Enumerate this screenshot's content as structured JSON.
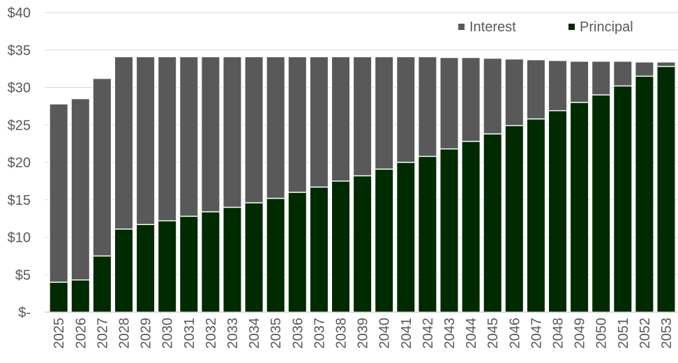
{
  "chart_data": {
    "type": "bar",
    "stacked": true,
    "title": "",
    "xlabel": "",
    "ylabel": "",
    "ylim": [
      0,
      40
    ],
    "y_ticks": [
      0,
      5,
      10,
      15,
      20,
      25,
      30,
      35,
      40
    ],
    "y_tick_labels": [
      "$-",
      "$5",
      "$10",
      "$15",
      "$20",
      "$25",
      "$30",
      "$35",
      "$40"
    ],
    "grid": true,
    "legend_position": "top-right",
    "categories": [
      "2025",
      "2026",
      "2027",
      "2028",
      "2029",
      "2030",
      "2031",
      "2032",
      "2033",
      "2034",
      "2035",
      "2036",
      "2037",
      "2038",
      "2039",
      "2040",
      "2041",
      "2042",
      "2043",
      "2044",
      "2045",
      "2046",
      "2047",
      "2048",
      "2049",
      "2050",
      "2051",
      "2052",
      "2053"
    ],
    "series": [
      {
        "name": "Principal",
        "color": "#002a00",
        "values": [
          4.0,
          4.3,
          7.5,
          11.1,
          11.7,
          12.2,
          12.8,
          13.4,
          14.0,
          14.6,
          15.2,
          16.0,
          16.7,
          17.5,
          18.2,
          19.1,
          20.0,
          20.8,
          21.8,
          22.8,
          23.8,
          24.9,
          25.8,
          26.9,
          28.0,
          29.0,
          30.2,
          31.5,
          32.8
        ]
      },
      {
        "name": "Interest",
        "color": "#595959",
        "values": [
          23.8,
          24.2,
          23.7,
          23.0,
          22.4,
          21.9,
          21.3,
          20.7,
          20.1,
          19.5,
          18.9,
          18.1,
          17.4,
          16.6,
          15.9,
          15.0,
          14.1,
          13.3,
          12.2,
          11.2,
          10.1,
          8.9,
          7.9,
          6.7,
          5.5,
          4.5,
          3.3,
          1.9,
          0.6
        ]
      }
    ],
    "legend": [
      {
        "name": "Interest",
        "color": "#595959"
      },
      {
        "name": "Principal",
        "color": "#002a00"
      }
    ]
  }
}
